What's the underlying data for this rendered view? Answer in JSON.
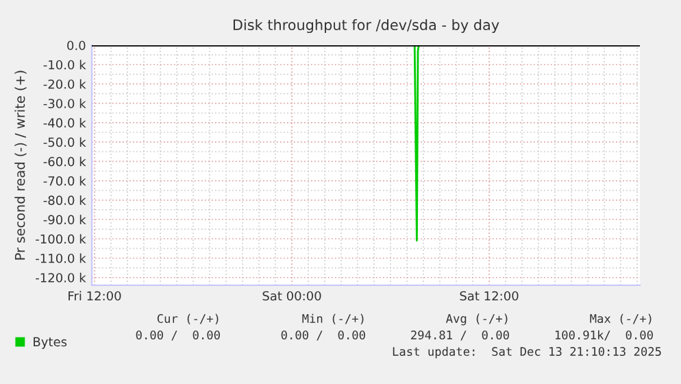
{
  "chart_data": {
    "type": "line",
    "title": "Disk throughput for /dev/sda - by day",
    "ylabel": "Pr second read (-) / write (+)",
    "series": [
      {
        "name": "Bytes",
        "color": "#00cc00",
        "x": [
          "2025-12-13T07:28",
          "2025-12-13T07:36",
          "2025-12-13T07:40",
          "2025-12-13T07:43"
        ],
        "values": [
          0,
          -100900,
          -3000,
          0
        ]
      }
    ],
    "xlim": [
      "2025-12-12T11:50",
      "2025-12-13T21:10"
    ],
    "xticks": [
      {
        "value": "2025-12-12T12:00",
        "label": "Fri 12:00"
      },
      {
        "value": "2025-12-12T13:00",
        "label": null
      },
      {
        "value": "2025-12-12T14:00",
        "label": null
      },
      {
        "value": "2025-12-12T15:00",
        "label": null
      },
      {
        "value": "2025-12-12T16:00",
        "label": null
      },
      {
        "value": "2025-12-12T17:00",
        "label": null
      },
      {
        "value": "2025-12-12T18:00",
        "label": null
      },
      {
        "value": "2025-12-12T19:00",
        "label": null
      },
      {
        "value": "2025-12-12T20:00",
        "label": null
      },
      {
        "value": "2025-12-12T21:00",
        "label": null
      },
      {
        "value": "2025-12-12T22:00",
        "label": null
      },
      {
        "value": "2025-12-12T23:00",
        "label": null
      },
      {
        "value": "2025-12-13T00:00",
        "label": "Sat 00:00"
      },
      {
        "value": "2025-12-13T01:00",
        "label": null
      },
      {
        "value": "2025-12-13T02:00",
        "label": null
      },
      {
        "value": "2025-12-13T03:00",
        "label": null
      },
      {
        "value": "2025-12-13T04:00",
        "label": null
      },
      {
        "value": "2025-12-13T05:00",
        "label": null
      },
      {
        "value": "2025-12-13T06:00",
        "label": null
      },
      {
        "value": "2025-12-13T07:00",
        "label": null
      },
      {
        "value": "2025-12-13T08:00",
        "label": null
      },
      {
        "value": "2025-12-13T09:00",
        "label": null
      },
      {
        "value": "2025-12-13T10:00",
        "label": null
      },
      {
        "value": "2025-12-13T11:00",
        "label": null
      },
      {
        "value": "2025-12-13T12:00",
        "label": "Sat 12:00"
      },
      {
        "value": "2025-12-13T13:00",
        "label": null
      },
      {
        "value": "2025-12-13T14:00",
        "label": null
      },
      {
        "value": "2025-12-13T15:00",
        "label": null
      },
      {
        "value": "2025-12-13T16:00",
        "label": null
      },
      {
        "value": "2025-12-13T17:00",
        "label": null
      },
      {
        "value": "2025-12-13T18:00",
        "label": null
      },
      {
        "value": "2025-12-13T19:00",
        "label": null
      },
      {
        "value": "2025-12-13T20:00",
        "label": null
      },
      {
        "value": "2025-12-13T21:00",
        "label": null
      }
    ],
    "ylim": [
      -124000,
      0
    ],
    "yticks": [
      {
        "value": 0,
        "label": "0.0"
      },
      {
        "value": -5000,
        "label": null
      },
      {
        "value": -10000,
        "label": "-10.0 k"
      },
      {
        "value": -15000,
        "label": null
      },
      {
        "value": -20000,
        "label": "-20.0 k"
      },
      {
        "value": -25000,
        "label": null
      },
      {
        "value": -30000,
        "label": "-30.0 k"
      },
      {
        "value": -35000,
        "label": null
      },
      {
        "value": -40000,
        "label": "-40.0 k"
      },
      {
        "value": -45000,
        "label": null
      },
      {
        "value": -50000,
        "label": "-50.0 k"
      },
      {
        "value": -55000,
        "label": null
      },
      {
        "value": -60000,
        "label": "-60.0 k"
      },
      {
        "value": -65000,
        "label": null
      },
      {
        "value": -70000,
        "label": "-70.0 k"
      },
      {
        "value": -75000,
        "label": null
      },
      {
        "value": -80000,
        "label": "-80.0 k"
      },
      {
        "value": -85000,
        "label": null
      },
      {
        "value": -90000,
        "label": "-90.0 k"
      },
      {
        "value": -95000,
        "label": null
      },
      {
        "value": -100000,
        "label": "-100.0 k"
      },
      {
        "value": -105000,
        "label": null
      },
      {
        "value": -110000,
        "label": "-110.0 k"
      },
      {
        "value": -115000,
        "label": null
      },
      {
        "value": -120000,
        "label": "-120.0 k"
      }
    ],
    "ref_lines": [
      {
        "axis": "y",
        "value": 0,
        "color": "#000000"
      }
    ],
    "grid": true,
    "legend": "bottom left",
    "marker": "none",
    "line_style": "solid",
    "annotations": [
      "Cur (-/+)",
      "Min (-/+)",
      "Avg (-/+)",
      "Max (-/+)",
      "0.00 /  0.00",
      "0.00 /  0.00",
      "294.81 /  0.00",
      "100.91k/  0.00",
      "Last update:  Sat Dec 13 21:10:13 2025"
    ]
  }
}
